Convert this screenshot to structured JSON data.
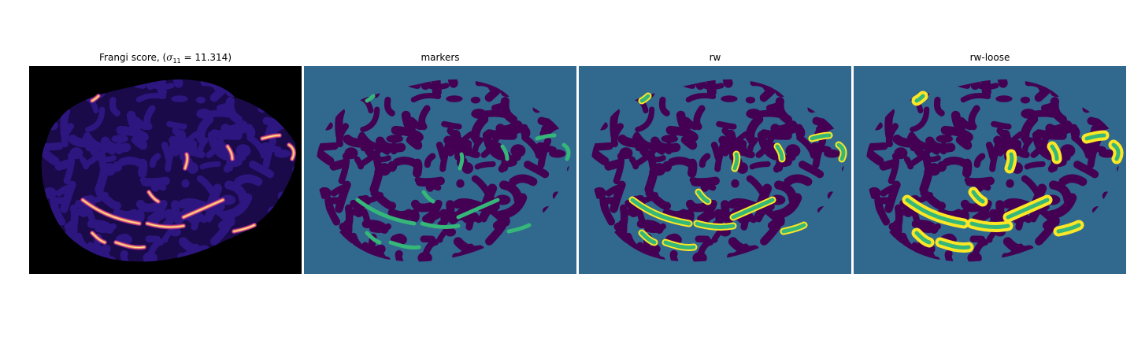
{
  "panels": [
    {
      "id": "frangi",
      "title_prefix": "Frangi score, (",
      "title_symbol": "σ",
      "title_subscript": "11",
      "title_equals": " = 11.314",
      "title_suffix": ")",
      "colormap": "magma",
      "background": "#000000",
      "vessel_color": "#2d1680",
      "highlight_colors": [
        "#8b2a8f",
        "#e0577a",
        "#fca35b",
        "#fde8a0"
      ]
    },
    {
      "id": "markers",
      "title": "markers",
      "colormap": "viridis",
      "background": "#31688e",
      "label_color": "#440154",
      "marker_color": "#35b779"
    },
    {
      "id": "rw",
      "title": "rw",
      "colormap": "viridis",
      "background": "#31688e",
      "label_color": "#440154",
      "marker_color": "#35b779",
      "segment_color": "#fde725"
    },
    {
      "id": "rw-loose",
      "title": "rw-loose",
      "colormap": "viridis",
      "background": "#31688e",
      "label_color": "#440154",
      "marker_color": "#35b779",
      "segment_color": "#fde725"
    }
  ]
}
